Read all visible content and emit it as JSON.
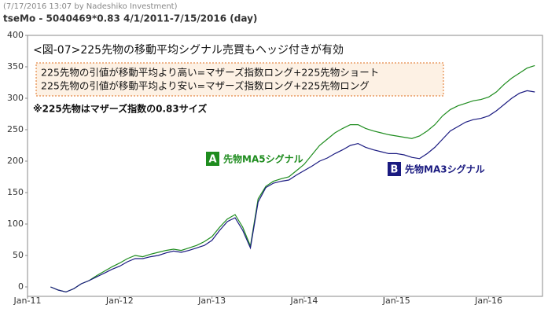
{
  "chart_data": {
    "type": "line",
    "timestamp": "(7/17/2016 13:07 by Nadeshiko Investment)",
    "title": "tseMo - 5040469*0.83  4/1/2011-7/15/2016 (day)",
    "annotation_title": "<図-07>225先物の移動平均シグナル売買もヘッジ付きが有効",
    "annotation_lines": [
      "225先物の引値が移動平均より高い=マザーズ指数ロング+225先物ショート",
      "225先物の引値が移動平均より安い=マザーズ指数ロング+225先物ロング"
    ],
    "note": "※225先物はマザーズ指数の0.83サイズ",
    "x": [
      "2011-04",
      "2011-05",
      "2011-06",
      "2011-07",
      "2011-08",
      "2011-09",
      "2011-10",
      "2011-11",
      "2011-12",
      "2012-01",
      "2012-02",
      "2012-03",
      "2012-04",
      "2012-05",
      "2012-06",
      "2012-07",
      "2012-08",
      "2012-09",
      "2012-10",
      "2012-11",
      "2012-12",
      "2013-01",
      "2013-02",
      "2013-03",
      "2013-04",
      "2013-05",
      "2013-06",
      "2013-07",
      "2013-08",
      "2013-09",
      "2013-10",
      "2013-11",
      "2013-12",
      "2014-01",
      "2014-02",
      "2014-03",
      "2014-04",
      "2014-05",
      "2014-06",
      "2014-07",
      "2014-08",
      "2014-09",
      "2014-10",
      "2014-11",
      "2014-12",
      "2015-01",
      "2015-02",
      "2015-03",
      "2015-04",
      "2015-05",
      "2015-06",
      "2015-07",
      "2015-08",
      "2015-09",
      "2015-10",
      "2015-11",
      "2015-12",
      "2016-01",
      "2016-02",
      "2016-03",
      "2016-04",
      "2016-05",
      "2016-06",
      "2016-07"
    ],
    "series": [
      {
        "name": "先物MA5シグナル",
        "badge": "A",
        "color": "#1e8c1e",
        "values": [
          0,
          -5,
          -8,
          -3,
          5,
          10,
          18,
          25,
          32,
          38,
          45,
          50,
          48,
          52,
          55,
          58,
          60,
          58,
          62,
          66,
          72,
          80,
          95,
          108,
          115,
          95,
          65,
          140,
          160,
          168,
          172,
          175,
          185,
          195,
          210,
          225,
          235,
          245,
          252,
          258,
          258,
          252,
          248,
          245,
          242,
          240,
          238,
          236,
          240,
          248,
          258,
          272,
          282,
          288,
          292,
          296,
          298,
          302,
          310,
          322,
          332,
          340,
          348,
          352
        ]
      },
      {
        "name": "先物MA3シグナル",
        "badge": "B",
        "color": "#1a1a80",
        "values": [
          0,
          -5,
          -8,
          -3,
          5,
          10,
          16,
          22,
          28,
          33,
          40,
          45,
          45,
          48,
          50,
          54,
          57,
          55,
          58,
          62,
          66,
          74,
          90,
          104,
          110,
          90,
          62,
          135,
          158,
          165,
          168,
          170,
          178,
          185,
          192,
          200,
          205,
          212,
          218,
          225,
          228,
          222,
          218,
          215,
          212,
          212,
          210,
          206,
          204,
          212,
          222,
          235,
          248,
          255,
          262,
          266,
          268,
          272,
          280,
          290,
          300,
          308,
          312,
          310
        ]
      }
    ],
    "xlim": [
      "2011-01",
      "2016-08"
    ],
    "xticks": [
      {
        "value": "2011-01",
        "label": "Jan-11"
      },
      {
        "value": "2012-01",
        "label": "Jan-12"
      },
      {
        "value": "2013-01",
        "label": "Jan-13"
      },
      {
        "value": "2014-01",
        "label": "Jan-14"
      },
      {
        "value": "2015-01",
        "label": "Jan-15"
      },
      {
        "value": "2016-01",
        "label": "Jan-16"
      }
    ],
    "ylim": [
      -15,
      400
    ],
    "yticks": [
      0,
      50,
      100,
      150,
      200,
      250,
      300,
      350,
      400
    ],
    "grid": false
  }
}
